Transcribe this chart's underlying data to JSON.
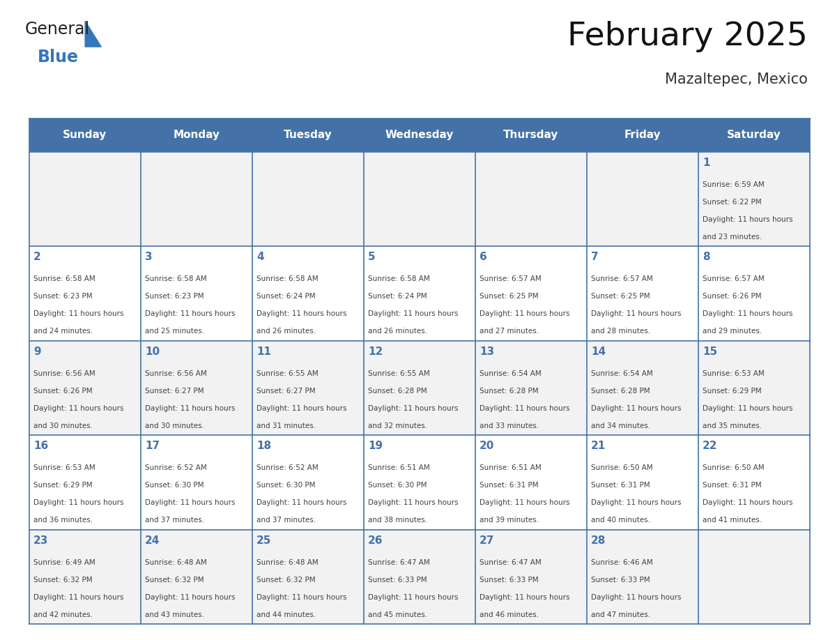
{
  "title": "February 2025",
  "subtitle": "Mazaltepec, Mexico",
  "header_bg": "#4472A8",
  "header_text_color": "#FFFFFF",
  "day_names": [
    "Sunday",
    "Monday",
    "Tuesday",
    "Wednesday",
    "Thursday",
    "Friday",
    "Saturday"
  ],
  "cell_bg_light": "#F2F2F2",
  "cell_bg_white": "#FFFFFF",
  "cell_border_color": "#4472A8",
  "number_color": "#4472A8",
  "text_color": "#404040",
  "logo_text1": "General",
  "logo_text2": "Blue",
  "logo_color1": "#222222",
  "logo_color2": "#3578B9",
  "logo_triangle_color": "#3578B9",
  "days": [
    {
      "day": 1,
      "col": 6,
      "row": 0,
      "sunrise": "6:59 AM",
      "sunset": "6:22 PM",
      "daylight": "11 hours and 23 minutes."
    },
    {
      "day": 2,
      "col": 0,
      "row": 1,
      "sunrise": "6:58 AM",
      "sunset": "6:23 PM",
      "daylight": "11 hours and 24 minutes."
    },
    {
      "day": 3,
      "col": 1,
      "row": 1,
      "sunrise": "6:58 AM",
      "sunset": "6:23 PM",
      "daylight": "11 hours and 25 minutes."
    },
    {
      "day": 4,
      "col": 2,
      "row": 1,
      "sunrise": "6:58 AM",
      "sunset": "6:24 PM",
      "daylight": "11 hours and 26 minutes."
    },
    {
      "day": 5,
      "col": 3,
      "row": 1,
      "sunrise": "6:58 AM",
      "sunset": "6:24 PM",
      "daylight": "11 hours and 26 minutes."
    },
    {
      "day": 6,
      "col": 4,
      "row": 1,
      "sunrise": "6:57 AM",
      "sunset": "6:25 PM",
      "daylight": "11 hours and 27 minutes."
    },
    {
      "day": 7,
      "col": 5,
      "row": 1,
      "sunrise": "6:57 AM",
      "sunset": "6:25 PM",
      "daylight": "11 hours and 28 minutes."
    },
    {
      "day": 8,
      "col": 6,
      "row": 1,
      "sunrise": "6:57 AM",
      "sunset": "6:26 PM",
      "daylight": "11 hours and 29 minutes."
    },
    {
      "day": 9,
      "col": 0,
      "row": 2,
      "sunrise": "6:56 AM",
      "sunset": "6:26 PM",
      "daylight": "11 hours and 30 minutes."
    },
    {
      "day": 10,
      "col": 1,
      "row": 2,
      "sunrise": "6:56 AM",
      "sunset": "6:27 PM",
      "daylight": "11 hours and 30 minutes."
    },
    {
      "day": 11,
      "col": 2,
      "row": 2,
      "sunrise": "6:55 AM",
      "sunset": "6:27 PM",
      "daylight": "11 hours and 31 minutes."
    },
    {
      "day": 12,
      "col": 3,
      "row": 2,
      "sunrise": "6:55 AM",
      "sunset": "6:28 PM",
      "daylight": "11 hours and 32 minutes."
    },
    {
      "day": 13,
      "col": 4,
      "row": 2,
      "sunrise": "6:54 AM",
      "sunset": "6:28 PM",
      "daylight": "11 hours and 33 minutes."
    },
    {
      "day": 14,
      "col": 5,
      "row": 2,
      "sunrise": "6:54 AM",
      "sunset": "6:28 PM",
      "daylight": "11 hours and 34 minutes."
    },
    {
      "day": 15,
      "col": 6,
      "row": 2,
      "sunrise": "6:53 AM",
      "sunset": "6:29 PM",
      "daylight": "11 hours and 35 minutes."
    },
    {
      "day": 16,
      "col": 0,
      "row": 3,
      "sunrise": "6:53 AM",
      "sunset": "6:29 PM",
      "daylight": "11 hours and 36 minutes."
    },
    {
      "day": 17,
      "col": 1,
      "row": 3,
      "sunrise": "6:52 AM",
      "sunset": "6:30 PM",
      "daylight": "11 hours and 37 minutes."
    },
    {
      "day": 18,
      "col": 2,
      "row": 3,
      "sunrise": "6:52 AM",
      "sunset": "6:30 PM",
      "daylight": "11 hours and 37 minutes."
    },
    {
      "day": 19,
      "col": 3,
      "row": 3,
      "sunrise": "6:51 AM",
      "sunset": "6:30 PM",
      "daylight": "11 hours and 38 minutes."
    },
    {
      "day": 20,
      "col": 4,
      "row": 3,
      "sunrise": "6:51 AM",
      "sunset": "6:31 PM",
      "daylight": "11 hours and 39 minutes."
    },
    {
      "day": 21,
      "col": 5,
      "row": 3,
      "sunrise": "6:50 AM",
      "sunset": "6:31 PM",
      "daylight": "11 hours and 40 minutes."
    },
    {
      "day": 22,
      "col": 6,
      "row": 3,
      "sunrise": "6:50 AM",
      "sunset": "6:31 PM",
      "daylight": "11 hours and 41 minutes."
    },
    {
      "day": 23,
      "col": 0,
      "row": 4,
      "sunrise": "6:49 AM",
      "sunset": "6:32 PM",
      "daylight": "11 hours and 42 minutes."
    },
    {
      "day": 24,
      "col": 1,
      "row": 4,
      "sunrise": "6:48 AM",
      "sunset": "6:32 PM",
      "daylight": "11 hours and 43 minutes."
    },
    {
      "day": 25,
      "col": 2,
      "row": 4,
      "sunrise": "6:48 AM",
      "sunset": "6:32 PM",
      "daylight": "11 hours and 44 minutes."
    },
    {
      "day": 26,
      "col": 3,
      "row": 4,
      "sunrise": "6:47 AM",
      "sunset": "6:33 PM",
      "daylight": "11 hours and 45 minutes."
    },
    {
      "day": 27,
      "col": 4,
      "row": 4,
      "sunrise": "6:47 AM",
      "sunset": "6:33 PM",
      "daylight": "11 hours and 46 minutes."
    },
    {
      "day": 28,
      "col": 5,
      "row": 4,
      "sunrise": "6:46 AM",
      "sunset": "6:33 PM",
      "daylight": "11 hours and 47 minutes."
    }
  ],
  "num_rows": 5,
  "num_cols": 7,
  "figsize": [
    11.88,
    9.18
  ],
  "dpi": 100
}
